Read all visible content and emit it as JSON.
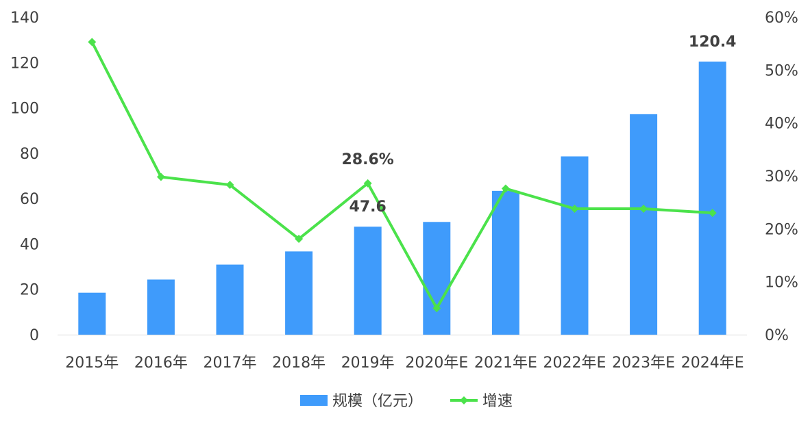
{
  "chart_data": {
    "type": "bar",
    "categories": [
      "2015年",
      "2016年",
      "2017年",
      "2018年",
      "2019年",
      "2020年E",
      "2021年E",
      "2022年E",
      "2023年E",
      "2024年E"
    ],
    "series": [
      {
        "name": "规模（亿元）",
        "type": "bar",
        "axis": "left",
        "color": "#3f9bfb",
        "values": [
          18.5,
          24.3,
          30.9,
          36.7,
          47.6,
          49.7,
          63.4,
          78.6,
          97.2,
          120.4
        ]
      },
      {
        "name": "增速",
        "type": "line",
        "axis": "right",
        "color": "#4be24b",
        "values": [
          0.553,
          0.298,
          0.283,
          0.181,
          0.286,
          0.05,
          0.276,
          0.238,
          0.238,
          0.23
        ]
      }
    ],
    "y_left": {
      "min": 0,
      "max": 140,
      "ticks": [
        "0",
        "20",
        "40",
        "60",
        "80",
        "100",
        "120",
        "140"
      ]
    },
    "y_right": {
      "min": 0,
      "max": 0.6,
      "ticks": [
        "0%",
        "10%",
        "20%",
        "30%",
        "40%",
        "50%",
        "60%"
      ]
    },
    "data_labels": [
      {
        "series": 0,
        "index": 4,
        "text": "47.6"
      },
      {
        "series": 1,
        "index": 4,
        "text": "28.6%"
      },
      {
        "series": 0,
        "index": 9,
        "text": "120.4"
      }
    ],
    "grid": false,
    "legend_position": "bottom"
  }
}
